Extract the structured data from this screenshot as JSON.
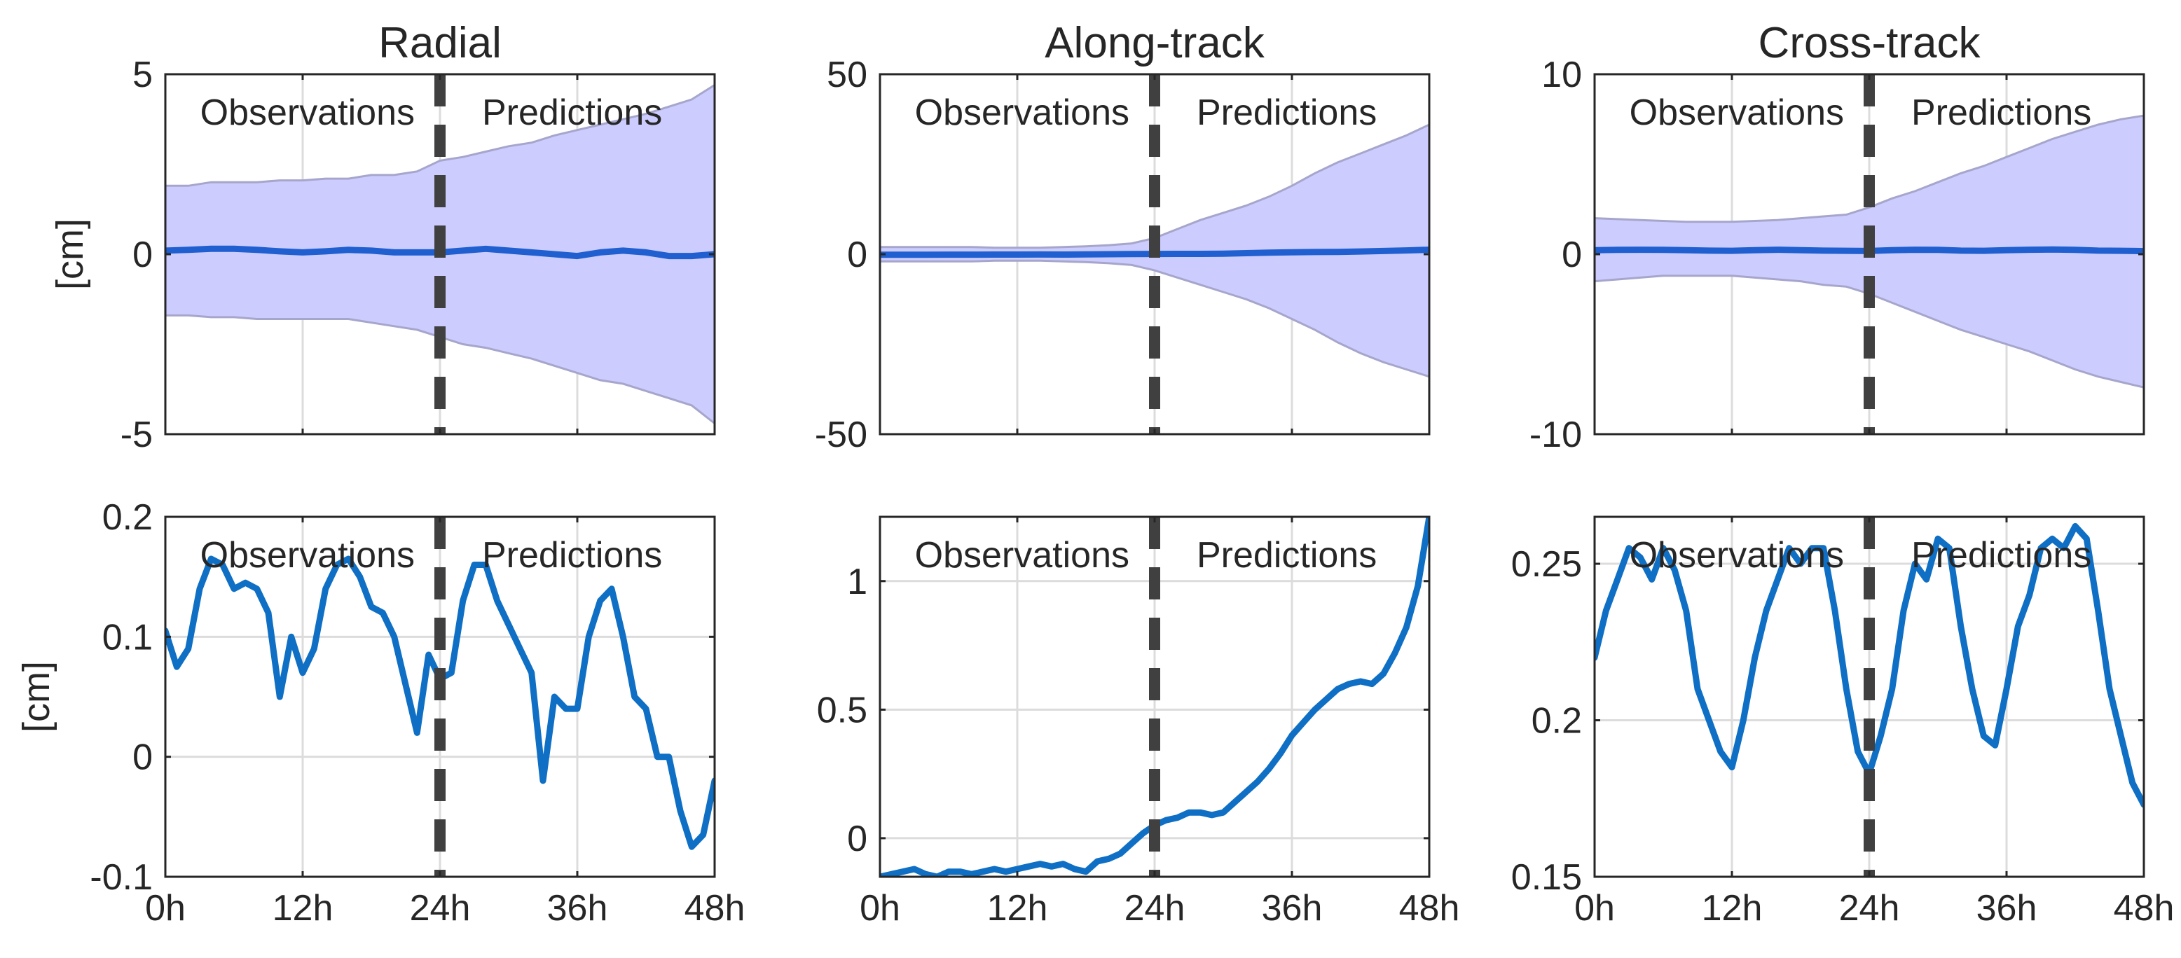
{
  "figure": {
    "band_color": "#ccccff",
    "band_edge_color": "#a6a6cc",
    "mean_line_color": "#1f5fd0",
    "series_line_color": "#0f6fc4",
    "divider_color": "#404040",
    "grid": true,
    "shared_x_tick_labels": [
      "0h",
      "12h",
      "24h",
      "36h",
      "48h"
    ]
  },
  "chart_data": [
    {
      "type": "area",
      "title": "Radial",
      "xlabel": "",
      "ylabel": "[cm]",
      "xlim": [
        0,
        48
      ],
      "ylim": [
        -5,
        5
      ],
      "x_ticks": [
        0,
        12,
        24,
        36,
        48
      ],
      "y_ticks": [
        -5,
        0,
        5
      ],
      "y_tick_labels": [
        "-5",
        "0",
        "5"
      ],
      "divider_x": 24,
      "annotations": [
        "Observations",
        "Predictions"
      ],
      "x": [
        0,
        2,
        4,
        6,
        8,
        10,
        12,
        14,
        16,
        18,
        20,
        22,
        24,
        26,
        28,
        30,
        32,
        34,
        36,
        38,
        40,
        42,
        44,
        46,
        48
      ],
      "upper": [
        1.9,
        1.9,
        2.0,
        2.0,
        2.0,
        2.05,
        2.05,
        2.1,
        2.1,
        2.2,
        2.2,
        2.3,
        2.6,
        2.7,
        2.85,
        3.0,
        3.1,
        3.3,
        3.45,
        3.6,
        3.75,
        3.9,
        4.1,
        4.3,
        4.7
      ],
      "lower": [
        -1.7,
        -1.7,
        -1.75,
        -1.75,
        -1.8,
        -1.8,
        -1.8,
        -1.8,
        -1.8,
        -1.9,
        -2.0,
        -2.1,
        -2.3,
        -2.5,
        -2.6,
        -2.75,
        -2.9,
        -3.1,
        -3.3,
        -3.5,
        -3.6,
        -3.8,
        -4.0,
        -4.2,
        -4.7
      ],
      "mean": [
        0.1,
        0.12,
        0.15,
        0.15,
        0.12,
        0.08,
        0.05,
        0.08,
        0.12,
        0.1,
        0.05,
        0.05,
        0.05,
        0.1,
        0.15,
        0.1,
        0.05,
        0.0,
        -0.05,
        0.05,
        0.1,
        0.05,
        -0.05,
        -0.05,
        0.0
      ]
    },
    {
      "type": "area",
      "title": "Along-track",
      "xlabel": "",
      "ylabel": "",
      "xlim": [
        0,
        48
      ],
      "ylim": [
        -50,
        50
      ],
      "x_ticks": [
        0,
        12,
        24,
        36,
        48
      ],
      "y_ticks": [
        -50,
        0,
        50
      ],
      "y_tick_labels": [
        "-50",
        "0",
        "50"
      ],
      "divider_x": 24,
      "annotations": [
        "Observations",
        "Predictions"
      ],
      "x": [
        0,
        2,
        4,
        6,
        8,
        10,
        12,
        14,
        16,
        18,
        20,
        22,
        24,
        26,
        28,
        30,
        32,
        34,
        36,
        38,
        40,
        42,
        44,
        46,
        48
      ],
      "upper": [
        2.0,
        2.0,
        2.0,
        2.0,
        2.0,
        1.8,
        1.8,
        1.8,
        2.0,
        2.2,
        2.5,
        3.0,
        4.5,
        7.0,
        9.5,
        11.5,
        13.5,
        16.0,
        19.0,
        22.5,
        25.5,
        28.0,
        30.5,
        33.0,
        36.0
      ],
      "lower": [
        -2.0,
        -2.0,
        -2.0,
        -2.0,
        -2.0,
        -1.8,
        -1.8,
        -1.8,
        -2.0,
        -2.2,
        -2.5,
        -3.0,
        -4.5,
        -6.5,
        -8.5,
        -10.5,
        -12.5,
        -15.0,
        -18.0,
        -21.0,
        -24.5,
        -27.5,
        -30.0,
        -32.0,
        -34.0
      ],
      "mean": [
        -0.15,
        -0.13,
        -0.15,
        -0.12,
        -0.12,
        -0.1,
        -0.1,
        -0.08,
        -0.1,
        -0.05,
        0.0,
        0.05,
        0.08,
        0.1,
        0.1,
        0.15,
        0.3,
        0.45,
        0.55,
        0.6,
        0.65,
        0.75,
        0.9,
        1.05,
        1.25
      ]
    },
    {
      "type": "area",
      "title": "Cross-track",
      "xlabel": "",
      "ylabel": "",
      "xlim": [
        0,
        48
      ],
      "ylim": [
        -10,
        10
      ],
      "x_ticks": [
        0,
        12,
        24,
        36,
        48
      ],
      "y_ticks": [
        -10,
        0,
        10
      ],
      "y_tick_labels": [
        "-10",
        "0",
        "10"
      ],
      "divider_x": 24,
      "annotations": [
        "Observations",
        "Predictions"
      ],
      "x": [
        0,
        2,
        4,
        6,
        8,
        10,
        12,
        14,
        16,
        18,
        20,
        22,
        24,
        26,
        28,
        30,
        32,
        34,
        36,
        38,
        40,
        42,
        44,
        46,
        48
      ],
      "upper": [
        2.0,
        1.95,
        1.9,
        1.85,
        1.8,
        1.8,
        1.8,
        1.85,
        1.9,
        2.0,
        2.1,
        2.2,
        2.6,
        3.1,
        3.5,
        4.0,
        4.5,
        4.9,
        5.4,
        5.9,
        6.4,
        6.8,
        7.2,
        7.5,
        7.7
      ],
      "lower": [
        -1.5,
        -1.4,
        -1.3,
        -1.2,
        -1.2,
        -1.2,
        -1.2,
        -1.3,
        -1.4,
        -1.5,
        -1.7,
        -1.8,
        -2.2,
        -2.7,
        -3.2,
        -3.7,
        -4.2,
        -4.6,
        -5.0,
        -5.4,
        -5.9,
        -6.4,
        -6.8,
        -7.1,
        -7.4
      ],
      "mean": [
        0.22,
        0.24,
        0.25,
        0.24,
        0.22,
        0.2,
        0.19,
        0.22,
        0.25,
        0.22,
        0.2,
        0.19,
        0.18,
        0.22,
        0.25,
        0.24,
        0.2,
        0.19,
        0.22,
        0.25,
        0.26,
        0.24,
        0.2,
        0.19,
        0.17
      ]
    },
    {
      "type": "line",
      "title": "",
      "xlabel": "",
      "ylabel": "[cm]",
      "xlim": [
        0,
        48
      ],
      "ylim": [
        -0.1,
        0.2
      ],
      "x_ticks": [
        0,
        12,
        24,
        36,
        48
      ],
      "x_tick_labels": [
        "0h",
        "12h",
        "24h",
        "36h",
        "48h"
      ],
      "y_ticks": [
        -0.1,
        0,
        0.1,
        0.2
      ],
      "y_tick_labels": [
        "-0.1",
        "0",
        "0.1",
        "0.2"
      ],
      "divider_x": 24,
      "annotations": [
        "Observations",
        "Predictions"
      ],
      "series": [
        {
          "name": "Radial",
          "x": [
            0,
            1,
            2,
            3,
            4,
            5,
            6,
            7,
            8,
            9,
            10,
            11,
            12,
            13,
            14,
            15,
            16,
            17,
            18,
            19,
            20,
            21,
            22,
            23,
            24,
            25,
            26,
            27,
            28,
            29,
            30,
            31,
            32,
            33,
            34,
            35,
            36,
            37,
            38,
            39,
            40,
            41,
            42,
            43,
            44,
            45,
            46,
            47,
            48
          ],
          "y": [
            0.105,
            0.075,
            0.09,
            0.14,
            0.165,
            0.16,
            0.14,
            0.145,
            0.14,
            0.12,
            0.05,
            0.1,
            0.07,
            0.09,
            0.14,
            0.16,
            0.165,
            0.15,
            0.125,
            0.12,
            0.1,
            0.06,
            0.02,
            0.085,
            0.065,
            0.07,
            0.13,
            0.16,
            0.16,
            0.13,
            0.11,
            0.09,
            0.07,
            -0.02,
            0.05,
            0.04,
            0.04,
            0.1,
            0.13,
            0.14,
            0.1,
            0.05,
            0.04,
            0.0,
            0.0,
            -0.045,
            -0.075,
            -0.065,
            -0.02
          ]
        }
      ]
    },
    {
      "type": "line",
      "title": "",
      "xlabel": "",
      "ylabel": "",
      "xlim": [
        0,
        48
      ],
      "ylim": [
        -0.15,
        1.25
      ],
      "x_ticks": [
        0,
        12,
        24,
        36,
        48
      ],
      "x_tick_labels": [
        "0h",
        "12h",
        "24h",
        "36h",
        "48h"
      ],
      "y_ticks": [
        0,
        0.5,
        1
      ],
      "y_tick_labels": [
        "0",
        "0.5",
        "1"
      ],
      "divider_x": 24,
      "annotations": [
        "Observations",
        "Predictions"
      ],
      "series": [
        {
          "name": "Along-track",
          "x": [
            0,
            1,
            2,
            3,
            4,
            5,
            6,
            7,
            8,
            9,
            10,
            11,
            12,
            13,
            14,
            15,
            16,
            17,
            18,
            19,
            20,
            21,
            22,
            23,
            24,
            25,
            26,
            27,
            28,
            29,
            30,
            31,
            32,
            33,
            34,
            35,
            36,
            37,
            38,
            39,
            40,
            41,
            42,
            43,
            44,
            45,
            46,
            47,
            48
          ],
          "y": [
            -0.15,
            -0.14,
            -0.13,
            -0.12,
            -0.14,
            -0.15,
            -0.13,
            -0.13,
            -0.14,
            -0.13,
            -0.12,
            -0.13,
            -0.12,
            -0.11,
            -0.1,
            -0.11,
            -0.1,
            -0.12,
            -0.13,
            -0.09,
            -0.08,
            -0.06,
            -0.02,
            0.02,
            0.05,
            0.07,
            0.08,
            0.1,
            0.1,
            0.09,
            0.1,
            0.14,
            0.18,
            0.22,
            0.27,
            0.33,
            0.4,
            0.45,
            0.5,
            0.54,
            0.58,
            0.6,
            0.61,
            0.6,
            0.64,
            0.72,
            0.82,
            0.98,
            1.25
          ]
        }
      ]
    },
    {
      "type": "line",
      "title": "",
      "xlabel": "",
      "ylabel": "",
      "xlim": [
        0,
        48
      ],
      "ylim": [
        0.15,
        0.265
      ],
      "x_ticks": [
        0,
        12,
        24,
        36,
        48
      ],
      "x_tick_labels": [
        "0h",
        "12h",
        "24h",
        "36h",
        "48h"
      ],
      "y_ticks": [
        0.15,
        0.2,
        0.25
      ],
      "y_tick_labels": [
        "0.15",
        "0.2",
        "0.25"
      ],
      "divider_x": 24,
      "annotations": [
        "Observations",
        "Predictions"
      ],
      "series": [
        {
          "name": "Cross-track",
          "x": [
            0,
            1,
            2,
            3,
            4,
            5,
            6,
            7,
            8,
            9,
            10,
            11,
            12,
            13,
            14,
            15,
            16,
            17,
            18,
            19,
            20,
            21,
            22,
            23,
            24,
            25,
            26,
            27,
            28,
            29,
            30,
            31,
            32,
            33,
            34,
            35,
            36,
            37,
            38,
            39,
            40,
            41,
            42,
            43,
            44,
            45,
            46,
            47,
            48
          ],
          "y": [
            0.22,
            0.235,
            0.245,
            0.255,
            0.252,
            0.245,
            0.255,
            0.248,
            0.235,
            0.21,
            0.2,
            0.19,
            0.185,
            0.2,
            0.22,
            0.235,
            0.245,
            0.255,
            0.25,
            0.255,
            0.255,
            0.235,
            0.21,
            0.19,
            0.183,
            0.195,
            0.21,
            0.235,
            0.25,
            0.245,
            0.258,
            0.255,
            0.23,
            0.21,
            0.195,
            0.192,
            0.21,
            0.23,
            0.24,
            0.255,
            0.258,
            0.255,
            0.262,
            0.258,
            0.235,
            0.21,
            0.195,
            0.18,
            0.173
          ]
        }
      ]
    }
  ]
}
